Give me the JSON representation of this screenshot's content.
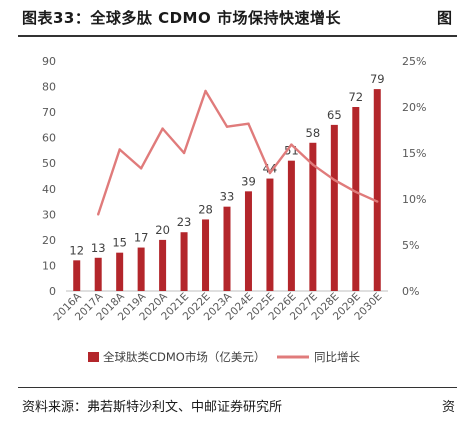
{
  "header": {
    "title": "图表33：全球多肽 CDMO 市场保持快速增长",
    "next_title_fragment": "图"
  },
  "footer": {
    "source": "资料来源：弗若斯特沙利文、中邮证券研究所",
    "next_source_fragment": "资"
  },
  "colors": {
    "bar": "#b3262b",
    "line": "#e07b7b",
    "axis": "#bfbfbf",
    "text": "#595959"
  },
  "chart_data": {
    "type": "bar",
    "categories": [
      "2016A",
      "2017A",
      "2018A",
      "2019A",
      "2020A",
      "2021E",
      "2022E",
      "2023A",
      "2024E",
      "2025E",
      "2026E",
      "2027E",
      "2028E",
      "2029E",
      "2030E"
    ],
    "series": [
      {
        "name": "全球肽类CDMO市场（亿美元）",
        "type": "bar",
        "axis": "left",
        "values": [
          12,
          13,
          15,
          17,
          20,
          23,
          28,
          33,
          39,
          44,
          51,
          58,
          65,
          72,
          79
        ],
        "labels": [
          "12",
          "13",
          "15",
          "17",
          "20",
          "23",
          "28",
          "33",
          "39",
          "44",
          "51",
          "58",
          "65",
          "72",
          "79"
        ]
      },
      {
        "name": "同比增长",
        "type": "line",
        "axis": "right",
        "values": [
          null,
          0.0833,
          0.1538,
          0.1333,
          0.1765,
          0.15,
          0.2174,
          0.1786,
          0.1818,
          0.1282,
          0.1591,
          0.1373,
          0.1207,
          0.1077,
          0.0972
        ]
      }
    ],
    "y_left": {
      "min": 0,
      "max": 90,
      "ticks": [
        "0",
        "10",
        "20",
        "30",
        "40",
        "50",
        "60",
        "70",
        "80",
        "90"
      ]
    },
    "y_right": {
      "min": 0,
      "max": 0.25,
      "ticks": [
        "0%",
        "5%",
        "10%",
        "15%",
        "20%",
        "25%"
      ]
    },
    "legend_position": "bottom",
    "grid": false
  }
}
